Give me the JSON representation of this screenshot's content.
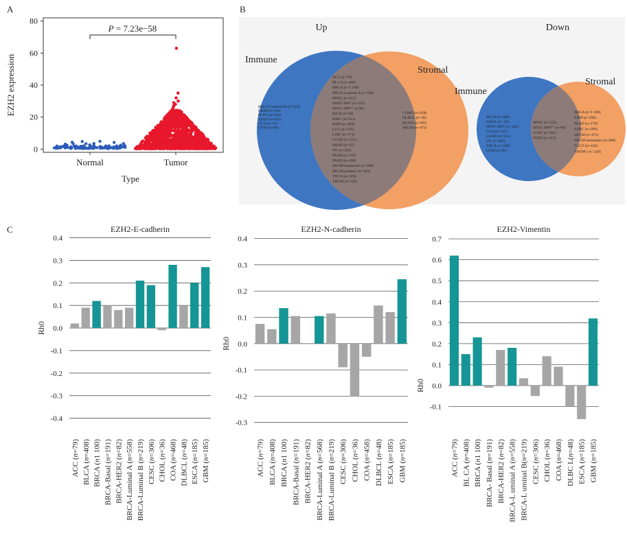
{
  "panel_labels": {
    "a": "A",
    "b": "B",
    "c": "C"
  },
  "chart_data": [
    {
      "id": "A",
      "type": "scatter",
      "xlabel": "Type",
      "ylabel": "EZH2 expression",
      "categories": [
        "Normal",
        "Tumor"
      ],
      "yticks": [
        0,
        20,
        40,
        60,
        80
      ],
      "ylim": [
        -2,
        82
      ],
      "annotation": {
        "prefix": "P",
        "text": " = 7.23e−58"
      },
      "colors": {
        "Normal": "#2b5cb8",
        "Tumor": "#e8182c"
      },
      "normal_points": [
        0.8,
        1.2,
        1.5,
        0.6,
        2.0,
        1.1,
        0.9,
        1.7,
        2.4,
        0.5,
        1.3,
        3.2,
        5.1,
        1.0,
        0.7,
        1.9,
        2.8,
        1.4,
        0.8,
        1.6
      ],
      "tumor_max": 63,
      "tumor_points": [
        63,
        35,
        32,
        30,
        29,
        28,
        27,
        26,
        25,
        24,
        23,
        22,
        21,
        20,
        19,
        18,
        17,
        16,
        15,
        14,
        13,
        12,
        11,
        10,
        9,
        8,
        7,
        6,
        5,
        4,
        3,
        2,
        1
      ]
    },
    {
      "id": "B-up",
      "type": "venn",
      "title": "Up",
      "left_label": "Immune",
      "right_label": "Stromal",
      "left_only": [
        "BRCA-Luminal B (n=219)",
        "GBM (n=153)",
        "PCPG (n=181)",
        "STAD (n=415)",
        "UCS (n=57)",
        "UVM (n=80)"
      ],
      "both": [
        "ACC (n=79)",
        "BLCA (n=408)",
        "BRCA (n=1 100)",
        "BRCA-Luminal A (n=568)",
        "HNSC (n=522)",
        "HNSC-HPV (n=422)",
        "HNSC-HPV⁺ (n 98)",
        "KICH (n=66)",
        "KIRC (n=533)",
        "KIRP (n=290)",
        "LGG (n=516)",
        "LIHC (n=371)",
        "LUAD (n=515)",
        "MESO (n=87)",
        "OV (n=303)",
        "PAAD (n=179)",
        "PRAD (n=498)",
        "SKCM-metastasis (n=368)",
        "SKCM-primary (n=103)",
        "THCA (n=509)",
        "THYM (n=120)"
      ],
      "right_only": [
        "COAD (n=458)",
        "DLBCL (n=48)",
        "READ (n=166)",
        "SKCM (n=471)"
      ]
    },
    {
      "id": "B-down",
      "type": "venn",
      "title": "Down",
      "left_label": "Immune",
      "right_label": "Stromal",
      "left_only": [
        "BLCA (n=408)",
        "CHOL (n= 36)",
        "HNSC-HPV (n=422)",
        "LGG (n=516)",
        "LUAD (n=515)",
        "OV (n=303)",
        "THCA (n=509)",
        "UVM (n=80)"
      ],
      "both": [
        "HNSC (n=522)",
        "HNSC-HPV⁺ (n=98)",
        "LUSC (n=501)",
        "STAD (n=415)"
      ],
      "right_only": [
        "BRCA (n=1 100)",
        "KIRP (n=290)",
        "PAAD (n=179)",
        "SARC (n=260)",
        "SKCM (n=471)",
        "SKCM-metastasis (n=368)",
        "TGCT (n=150)",
        "THYM ( n= 120)"
      ]
    },
    {
      "id": "C1",
      "type": "bar",
      "title": "EZH2-E-cadherin",
      "ylabel": "Rh0",
      "ylim": [
        -0.45,
        0.42
      ],
      "yticks": [
        0.4,
        0.3,
        0.2,
        0.1,
        0.0,
        -0.1,
        -0.2,
        -0.3,
        -0.4
      ],
      "ytick_labels": [
        "0.4",
        "0.3",
        "0.2",
        "0.1",
        "0.0",
        "-0.1",
        "-0.2",
        "-0.3",
        "-0.4"
      ],
      "categories": [
        {
          "name": "ACC (",
          "n": "n",
          "rest": "=79)"
        },
        {
          "name": "BLCA (",
          "n": "n",
          "rest": "=408)"
        },
        {
          "name": "BRCA (",
          "n": "n",
          "rest": "1 100)"
        },
        {
          "name": "BRCA-Basal (",
          "n": "n",
          "rest": "=191)"
        },
        {
          "name": "BRCA-HER2 (",
          "n": "n",
          "rest": "=82)"
        },
        {
          "name": "BRCA-Luminal A (",
          "n": "n",
          "rest": "=558)"
        },
        {
          "name": "BRCA-Luminal B (",
          "n": "n",
          "rest": "=219)"
        },
        {
          "name": "CESC (",
          "n": "n",
          "rest": "=306)"
        },
        {
          "name": "CHOL (",
          "n": "n",
          "rest": "=36)"
        },
        {
          "name": "COA (",
          "n": "n",
          "rest": "=468)"
        },
        {
          "name": "DLBCL (",
          "n": "n",
          "rest": "=48)"
        },
        {
          "name": "ESCA (",
          "n": "n",
          "rest": "=185)"
        },
        {
          "name": "GBM (",
          "n": "n",
          "rest": "=185)"
        }
      ],
      "values": [
        0.02,
        0.09,
        0.12,
        0.1,
        0.08,
        0.09,
        0.21,
        0.19,
        -0.01,
        0.28,
        0.1,
        0.2,
        0.27
      ],
      "significant": [
        false,
        false,
        true,
        false,
        false,
        false,
        true,
        true,
        false,
        true,
        false,
        true,
        true
      ]
    },
    {
      "id": "C2",
      "type": "bar",
      "title": "EZH2-N-cadherin",
      "ylabel": "Rh0",
      "ylim": [
        -0.34,
        0.42
      ],
      "yticks": [
        0.4,
        0.3,
        0.2,
        0.1,
        0.0,
        -0.1,
        -0.2,
        -0.3
      ],
      "ytick_labels": [
        "0.4",
        "0.3",
        "0.2",
        "0.1",
        "0.0",
        "-0.1",
        "-0.2",
        "-0.3"
      ],
      "categories": [
        {
          "name": "ACC (",
          "n": "n",
          "rest": "=79)"
        },
        {
          "name": "BLCA (",
          "n": "n",
          "rest": "=408)"
        },
        {
          "name": "BRCA (",
          "n": "n",
          "rest": "1 100)"
        },
        {
          "name": "BRCA-Basal (",
          "n": "n",
          "rest": "=191)"
        },
        {
          "name": "BRCA-HER2 (",
          "n": "n",
          "rest": "=82)"
        },
        {
          "name": "BRCA-Luminal A (",
          "n": "n",
          "rest": "=568)"
        },
        {
          "name": "BRCA-Luminal B (",
          "n": "n",
          "rest": "=219)"
        },
        {
          "name": "CESC (",
          "n": "n",
          "rest": "=306)"
        },
        {
          "name": "CHOL (",
          "n": "n",
          "rest": "=36)"
        },
        {
          "name": "COA (",
          "n": "n",
          "rest": "=458)"
        },
        {
          "name": "DLBCL (",
          "n": "n",
          "rest": "=48)"
        },
        {
          "name": "ESCA (",
          "n": "n",
          "rest": "=185)"
        },
        {
          "name": "GBM (",
          "n": "n",
          "rest": "=185)"
        }
      ],
      "values": [
        0.075,
        0.055,
        0.135,
        0.105,
        0.0,
        0.105,
        0.115,
        -0.09,
        -0.2,
        -0.05,
        0.145,
        0.12,
        0.245
      ],
      "significant": [
        false,
        false,
        true,
        false,
        false,
        true,
        false,
        false,
        false,
        false,
        false,
        false,
        true
      ]
    },
    {
      "id": "C3",
      "type": "bar",
      "title": "EZH2-Vimentin",
      "ylabel": "Rh0",
      "ylim": [
        -0.19,
        0.72
      ],
      "yticks": [
        0.7,
        0.6,
        0.5,
        0.4,
        0.3,
        0.2,
        0.1,
        0.0,
        -0.1
      ],
      "ytick_labels": [
        "0.7",
        "0.6",
        "0.5",
        "0.4",
        "0.3",
        "0.2",
        "0.1",
        "0.0",
        "-0.1"
      ],
      "categories": [
        {
          "name": "ACC (",
          "n": "n",
          "rest": "=79)"
        },
        {
          "name": "BL CA (",
          "n": "n",
          "rest": "=408)"
        },
        {
          "name": "BRCA (",
          "n": "n",
          "rest": "1 100)"
        },
        {
          "name": "BRCA- Basal (",
          "n": "n",
          "rest": "=191)"
        },
        {
          "name": "BRCA-HER2 (",
          "n": "n",
          "rest": "=82)"
        },
        {
          "name": "BRCA-L uminal A (",
          "n": "n",
          "rest": "=558)"
        },
        {
          "name": "BRCA-L uminal B(",
          "n": "n",
          "rest": "=219)"
        },
        {
          "name": "CESC (",
          "n": "n",
          "rest": "=306)"
        },
        {
          "name": "CHOL (",
          "n": "n",
          "rest": "=36)"
        },
        {
          "name": "COA (",
          "n": "n",
          "rest": "=468)"
        },
        {
          "name": "DLBC L(",
          "n": "n",
          "rest": "=48)"
        },
        {
          "name": "ESCA (",
          "n": "n",
          "rest": "=185)"
        },
        {
          "name": "GBM (",
          "n": "n",
          "rest": "=185)"
        }
      ],
      "values": [
        0.62,
        0.15,
        0.23,
        -0.01,
        0.17,
        0.18,
        0.035,
        -0.05,
        0.14,
        0.09,
        -0.1,
        -0.16,
        0.32
      ],
      "significant": [
        true,
        true,
        true,
        false,
        false,
        true,
        false,
        false,
        false,
        false,
        false,
        false,
        true
      ]
    }
  ],
  "colors": {
    "sig_bar": "#169596",
    "nonsig_bar": "#a6a6a6",
    "venn_left": "#3e76c2",
    "venn_right": "#f2a064",
    "venn_overlap": "#8d7b7a"
  }
}
